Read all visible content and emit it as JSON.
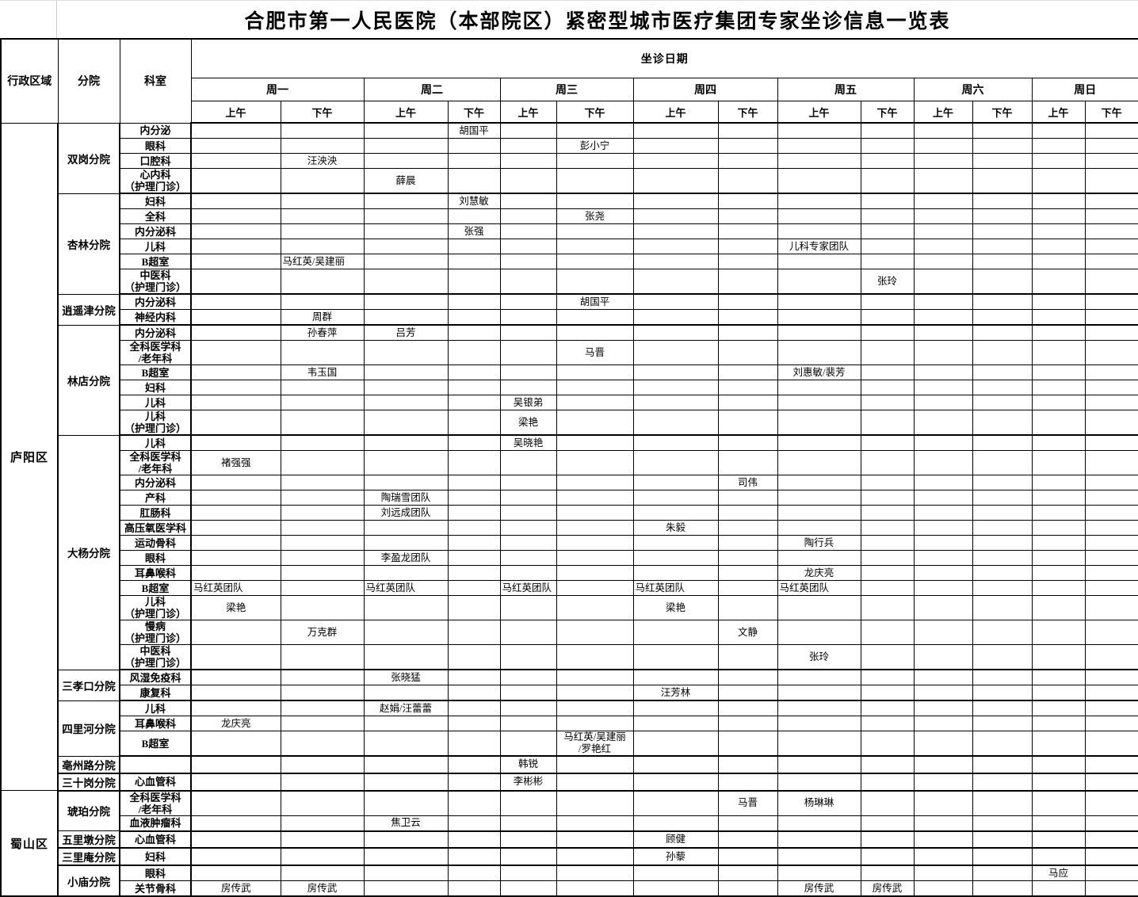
{
  "title": "合肥市第一人民医院（本部院区）紧密型城市医疗集团专家坐诊信息一览表",
  "header": {
    "region_label": "行政区域",
    "branch_label": "分院",
    "dept_label": "科室",
    "dates_label": "坐诊日期",
    "days": [
      "周一",
      "周二",
      "周三",
      "周四",
      "周五",
      "周六",
      "周日"
    ],
    "am_label": "上午",
    "pm_label": "下午"
  },
  "colors": {
    "grid": "#000000",
    "background": "#ffffff",
    "text": "#000000"
  },
  "regions": [
    {
      "name": "庐阳区",
      "branches": [
        {
          "name": "双岗分院",
          "rows": [
            {
              "dept": "内分泌",
              "cells": {
                "3": "胡国平"
              }
            },
            {
              "dept": "眼科",
              "cells": {
                "5": "彭小宁"
              }
            },
            {
              "dept": "口腔科",
              "cells": {
                "1": "汪泱泱"
              }
            },
            {
              "dept": "心内科\n（护理门诊）",
              "cells": {
                "2": "薛晨"
              }
            }
          ]
        },
        {
          "name": "杏林分院",
          "rows": [
            {
              "dept": "妇科",
              "cells": {
                "3": "刘慧敏"
              }
            },
            {
              "dept": "全科",
              "cells": {
                "5": "张尧"
              }
            },
            {
              "dept": "内分泌科",
              "cells": {
                "3": "张强"
              }
            },
            {
              "dept": "儿科",
              "cells": {
                "8": "儿科专家团队"
              }
            },
            {
              "dept": "B超室",
              "align": "left",
              "cells": {
                "1": "马红英/吴建丽"
              }
            },
            {
              "dept": "中医科\n（护理门诊）",
              "cells": {
                "9": "张玲"
              }
            }
          ]
        },
        {
          "name": "逍遥津分院",
          "rows": [
            {
              "dept": "内分泌科",
              "cells": {
                "5": "胡国平"
              }
            },
            {
              "dept": "神经内科",
              "cells": {
                "1": "周群"
              }
            }
          ]
        },
        {
          "name": "林店分院",
          "rows": [
            {
              "dept": "内分泌科",
              "cells": {
                "1": "孙春萍",
                "2": "吕芳"
              }
            },
            {
              "dept": "全科医学科\n/老年科",
              "cells": {
                "5": "马晋"
              }
            },
            {
              "dept": "B超室",
              "cells": {
                "1": "韦玉国",
                "8": "刘惠敏/裴芳"
              }
            },
            {
              "dept": "妇科",
              "cells": {}
            },
            {
              "dept": "儿科",
              "cells": {
                "4": "吴银弟"
              }
            },
            {
              "dept": "儿科\n（护理门诊）",
              "cells": {
                "4": "梁艳"
              }
            }
          ]
        },
        {
          "name": "大杨分院",
          "rows": [
            {
              "dept": "儿科",
              "cells": {
                "4": "吴晓艳"
              }
            },
            {
              "dept": "全科医学科\n/老年科",
              "cells": {
                "0": "褚强强"
              }
            },
            {
              "dept": "内分泌科",
              "cells": {
                "7": "司伟"
              }
            },
            {
              "dept": "产科",
              "cells": {
                "2": "陶瑞雪团队"
              }
            },
            {
              "dept": "肛肠科",
              "cells": {
                "2": "刘远成团队"
              }
            },
            {
              "dept": "高压氧医学科",
              "cells": {
                "6": "朱毅"
              }
            },
            {
              "dept": "运动骨科",
              "cells": {
                "8": "陶行兵"
              }
            },
            {
              "dept": "眼科",
              "cells": {
                "2": "李盈龙团队"
              }
            },
            {
              "dept": "耳鼻喉科",
              "cells": {
                "8": "龙庆亮"
              }
            },
            {
              "dept": "B超室",
              "align": "left",
              "cells": {
                "0": "马红英团队",
                "2": "马红英团队",
                "4": "马红英团队",
                "6": "马红英团队",
                "8": "马红英团队"
              }
            },
            {
              "dept": "儿科\n（护理门诊）",
              "cells": {
                "0": "梁艳",
                "6": "梁艳"
              }
            },
            {
              "dept": "慢病\n（护理门诊）",
              "cells": {
                "1": "万克群",
                "7": "文静"
              }
            },
            {
              "dept": "中医科\n（护理门诊）",
              "cells": {
                "8": "张玲"
              }
            }
          ]
        },
        {
          "name": "三孝口分院",
          "rows": [
            {
              "dept": "风湿免疫科",
              "cells": {
                "2": "张晓猛"
              }
            },
            {
              "dept": "康复科",
              "cells": {
                "6": "汪芳林"
              }
            }
          ]
        },
        {
          "name": "四里河分院",
          "rows": [
            {
              "dept": "儿科",
              "cells": {
                "2": "赵娟/汪蕾蕾"
              }
            },
            {
              "dept": "耳鼻喉科",
              "cells": {
                "0": "龙庆亮"
              }
            },
            {
              "dept": "B超室",
              "cells": {
                "5": "马红英/吴建丽\n/罗艳红"
              }
            }
          ]
        },
        {
          "name": "亳州路分院",
          "rows": [
            {
              "dept": "",
              "cells": {
                "4": "韩锐"
              }
            }
          ]
        },
        {
          "name": "三十岗分院",
          "rows": [
            {
              "dept": "心血管科",
              "cells": {
                "4": "李彬彬"
              }
            }
          ]
        }
      ]
    },
    {
      "name": "蜀山区",
      "branches": [
        {
          "name": "琥珀分院",
          "rows": [
            {
              "dept": "全科医学科\n/老年科",
              "cells": {
                "7": "马晋",
                "8": "杨琳琳"
              }
            },
            {
              "dept": "血液肿瘤科",
              "cells": {
                "2": "焦卫云"
              }
            }
          ]
        },
        {
          "name": "五里墩分院",
          "rows": [
            {
              "dept": "心血管科",
              "cells": {
                "6": "顾健"
              }
            }
          ]
        },
        {
          "name": "三里庵分院",
          "rows": [
            {
              "dept": "妇科",
              "cells": {
                "6": "孙藜"
              }
            }
          ]
        },
        {
          "name": "小庙分院",
          "rows": [
            {
              "dept": "眼科",
              "cells": {
                "12": "马应"
              }
            },
            {
              "dept": "关节骨科",
              "cells": {
                "0": "房传武",
                "1": "房传武",
                "8": "房传武",
                "9": "房传武"
              }
            }
          ]
        }
      ]
    }
  ]
}
